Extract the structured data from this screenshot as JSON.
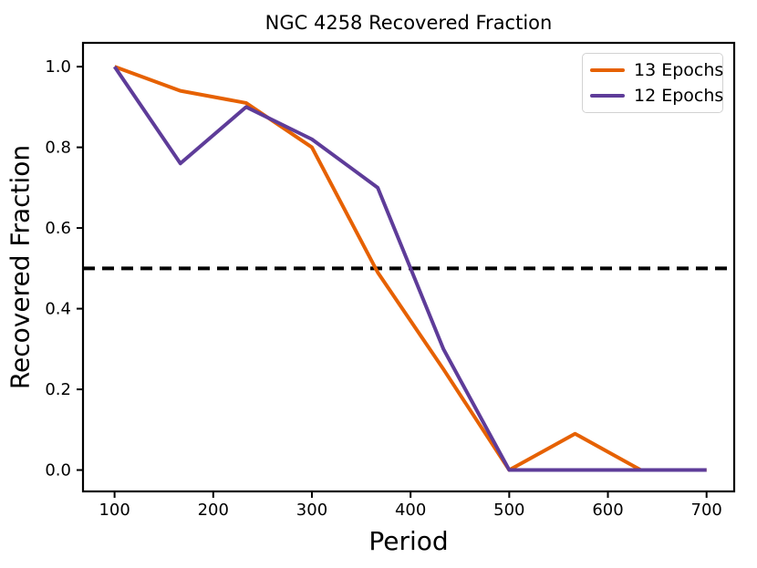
{
  "chart_data": {
    "type": "line",
    "title": "NGC 4258 Recovered Fraction",
    "xlabel": "Period",
    "ylabel": "Recovered Fraction",
    "x": [
      100,
      166.7,
      233.3,
      300,
      366.7,
      433.3,
      500,
      566.7,
      633.3,
      700
    ],
    "series": [
      {
        "name": "13 Epochs",
        "color": "#e66101",
        "values": [
          1.0,
          0.94,
          0.91,
          0.8,
          0.49,
          0.25,
          0.0,
          0.09,
          0.0,
          0.0
        ]
      },
      {
        "name": "12 Epochs",
        "color": "#5e3c99",
        "values": [
          1.0,
          0.76,
          0.9,
          0.82,
          0.7,
          0.3,
          0.0,
          0.0,
          0.0,
          0.0
        ]
      }
    ],
    "hline": {
      "y": 0.5,
      "color": "#000000",
      "style": "dashed",
      "linewidth": 4
    },
    "xlim": [
      68,
      728
    ],
    "ylim": [
      -0.053,
      1.059
    ],
    "xticks": [
      100,
      200,
      300,
      400,
      500,
      600,
      700
    ],
    "xtick_labels": [
      "100",
      "200",
      "300",
      "400",
      "500",
      "600",
      "700"
    ],
    "yticks": [
      0.0,
      0.2,
      0.4,
      0.6,
      0.8,
      1.0
    ],
    "ytick_labels": [
      "0.0",
      "0.2",
      "0.4",
      "0.6",
      "0.8",
      "1.0"
    ],
    "grid": false,
    "legend_position": "upper right",
    "line_width": 4,
    "axis_color": "#000000",
    "background": "#ffffff"
  }
}
